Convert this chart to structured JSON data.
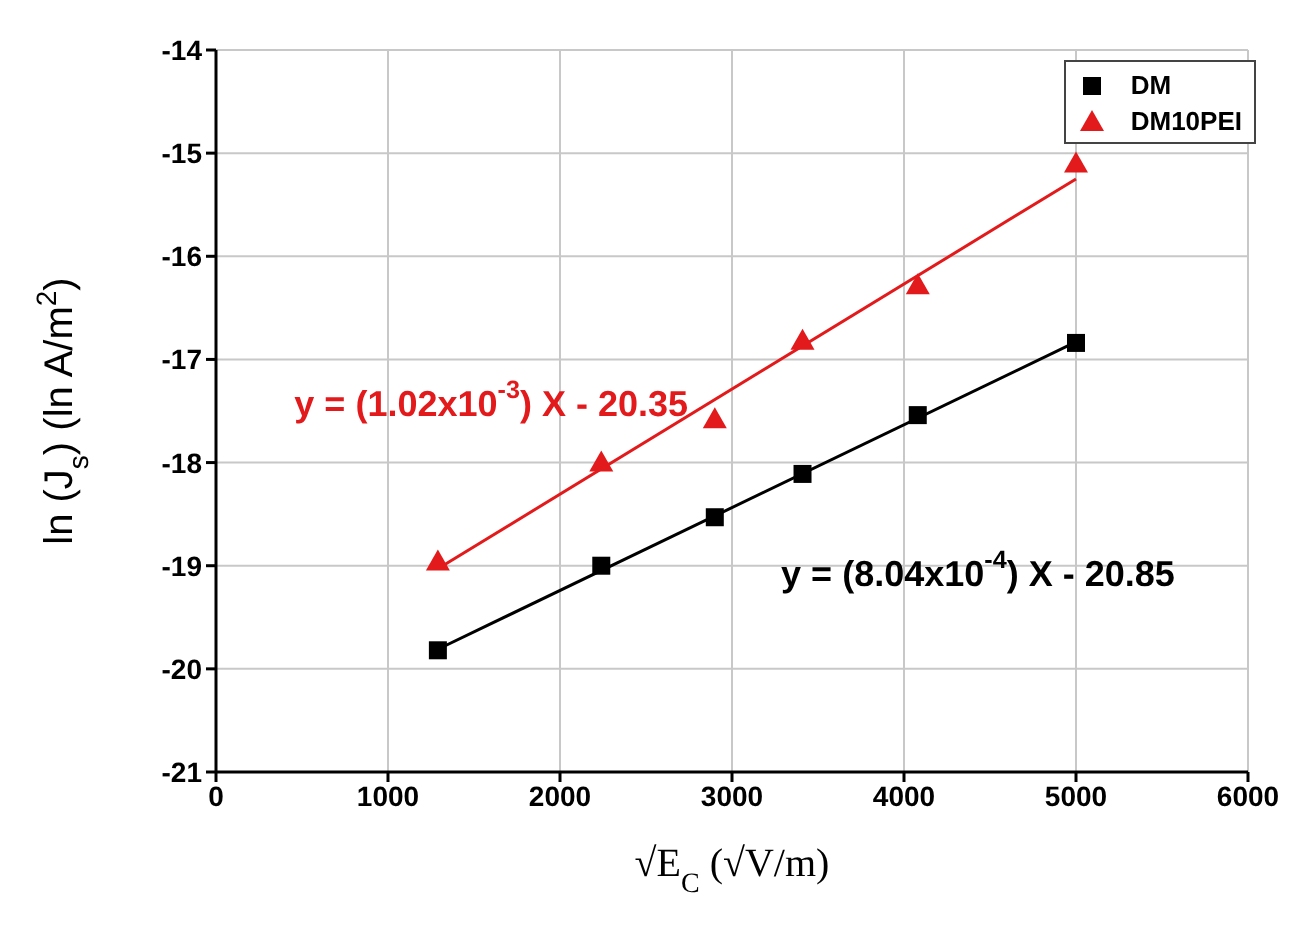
{
  "chart_data": {
    "type": "scatter",
    "xlabel": "√E$_{C}$ (√V/m)",
    "ylabel": "ln (J$_{s}$) (ln A/m$^{2}$)",
    "xlim": [
      0,
      6000
    ],
    "xticks": [
      0,
      1000,
      2000,
      3000,
      4000,
      5000,
      6000
    ],
    "ylim": [
      -21,
      -14
    ],
    "yticks": [
      -21,
      -20,
      -19,
      -18,
      -17,
      -16,
      -15,
      -14
    ],
    "grid": true,
    "legend": "top right",
    "series": [
      {
        "name": "DM",
        "color": "#000000",
        "marker": "square",
        "x": [
          1290,
          2240,
          2900,
          3410,
          4080,
          5000
        ],
        "values": [
          -19.82,
          -19.0,
          -18.53,
          -18.11,
          -17.54,
          -16.84
        ]
      },
      {
        "name": "DM10PEI",
        "color": "#e31a1c",
        "marker": "triangle",
        "x": [
          1290,
          2240,
          2900,
          3410,
          4080,
          5000
        ],
        "values": [
          -18.96,
          -18.0,
          -17.58,
          -16.82,
          -16.28,
          -15.1
        ]
      },
      {
        "type": "line",
        "color": "#000000",
        "marker": "none",
        "x": [
          1290,
          5000
        ],
        "values": [
          -19.81,
          -16.83
        ]
      },
      {
        "type": "line",
        "color": "#e31a1c",
        "marker": "none",
        "x": [
          1290,
          5000
        ],
        "values": [
          -19.03,
          -15.25
        ]
      }
    ],
    "annotations": [
      "y = (1.02x10$^{-3}$) X - 20.35",
      "y = (8.04x10$^{-4}$) X - 20.85"
    ]
  }
}
